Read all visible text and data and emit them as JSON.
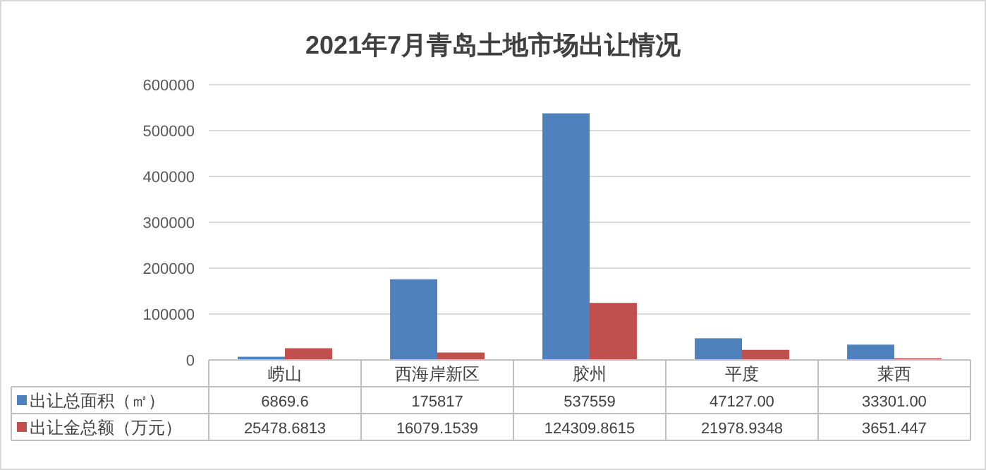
{
  "chart_data": {
    "type": "bar",
    "title": "2021年7月青岛土地市场出让情况",
    "categories": [
      "崂山",
      "西海岸新区",
      "胶州",
      "平度",
      "莱西"
    ],
    "series": [
      {
        "name": "出让总面积（㎡）",
        "color": "#4f81bd",
        "values": [
          6869.6,
          175817,
          537559,
          47127,
          33301
        ],
        "value_labels": [
          "6869.6",
          "175817",
          "537559",
          "47127.00",
          "33301.00"
        ]
      },
      {
        "name": "出让金总额（万元）",
        "color": "#c0504d",
        "values": [
          25478.6813,
          16079.1539,
          124309.8615,
          21978.9348,
          3651.447
        ],
        "value_labels": [
          "25478.6813",
          "16079.1539",
          "124309.8615",
          "21978.9348",
          "3651.447"
        ]
      }
    ],
    "ylim": [
      0,
      600000
    ],
    "yticks": [
      0,
      100000,
      200000,
      300000,
      400000,
      500000,
      600000
    ],
    "grid": "y",
    "legend": "bottom"
  }
}
